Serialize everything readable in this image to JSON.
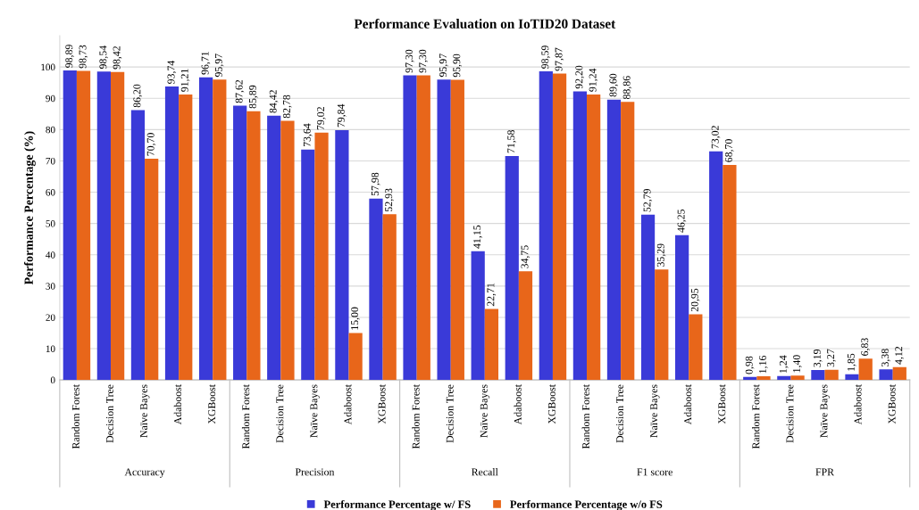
{
  "chart_data": {
    "type": "bar",
    "title": "Performance Evaluation on IoTID20 Dataset",
    "ylabel": "Performance Percentage (%)",
    "categories": [
      "Random Forest",
      "Decision Tree",
      "Naïve Bayes",
      "Adaboost",
      "XGBoost",
      "Random Forest",
      "Decision Tree",
      "Naïve Bayes",
      "Adaboost",
      "XGBoost",
      "Random Forest",
      "Decision Tree",
      "Naïve Bayes",
      "Adaboost",
      "XGBoost",
      "Random Forest",
      "Decision Tree",
      "Naïve Bayes",
      "Adaboost",
      "XGBoost",
      "Random Forest",
      "Decision Tree",
      "Naïve Bayes",
      "Adaboost",
      "XGBoost"
    ],
    "annotations": [
      "Accuracy",
      "Precision",
      "Recall",
      "F1 score",
      "FPR"
    ],
    "series": [
      {
        "name": "Performance Percentage w/ FS",
        "color": "#3a3ad8",
        "values": [
          98.89,
          98.54,
          86.2,
          93.74,
          96.71,
          87.62,
          84.42,
          73.64,
          79.84,
          57.98,
          97.3,
          95.97,
          41.15,
          71.58,
          98.59,
          92.2,
          89.6,
          52.79,
          46.25,
          73.02,
          0.98,
          1.24,
          3.19,
          1.85,
          3.38
        ],
        "value_labels": [
          "98,89",
          "98,54",
          "86,20",
          "93,74",
          "96,71",
          "87,62",
          "84,42",
          "73,64",
          "79,84",
          "57,98",
          "97,30",
          "95,97",
          "41,15",
          "71,58",
          "98,59",
          "92,20",
          "89,60",
          "52,79",
          "46,25",
          "73,02",
          "0,98",
          "1,24",
          "3,19",
          "1,85",
          "3,38"
        ]
      },
      {
        "name": "Performance Percentage w/o FS",
        "color": "#e8661a",
        "values": [
          98.73,
          98.42,
          70.7,
          91.21,
          95.97,
          85.89,
          82.78,
          79.02,
          15.0,
          52.93,
          97.3,
          95.9,
          22.71,
          34.75,
          97.87,
          91.24,
          88.86,
          35.29,
          20.95,
          68.7,
          1.16,
          1.4,
          3.27,
          6.83,
          4.12
        ],
        "value_labels": [
          "98,73",
          "98,42",
          "70,70",
          "91,21",
          "95,97",
          "85,89",
          "82,78",
          "79,02",
          "15,00",
          "52,93",
          "97,30",
          "95,90",
          "22,71",
          "34,75",
          "97,87",
          "91,24",
          "88,86",
          "35,29",
          "20,95",
          "68,70",
          "1,16",
          "1,40",
          "3,27",
          "6,83",
          "4,12"
        ]
      }
    ],
    "ylim": [
      0,
      110
    ],
    "yticks": [
      0,
      10,
      20,
      30,
      40,
      50,
      60,
      70,
      80,
      90,
      100
    ],
    "grid": "y",
    "legend": "bottom"
  }
}
